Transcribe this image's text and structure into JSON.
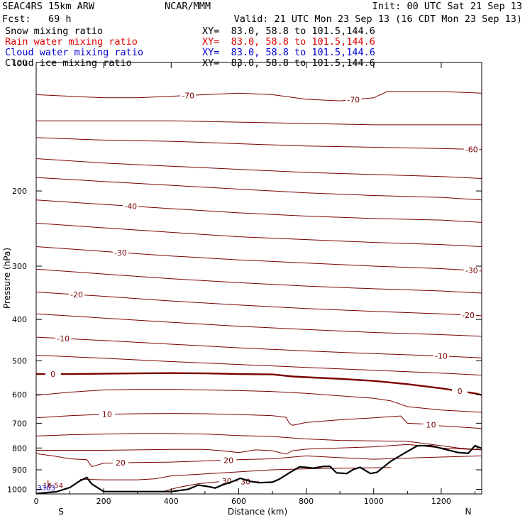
{
  "header": {
    "model": "SEAC4RS 15km ARW",
    "org": "NCAR/MMM",
    "init": "Init: 00 UTC Sat 21 Sep 13",
    "fcst": "Fcst:   69 h",
    "valid": "Valid: 21 UTC Mon 23 Sep 13 (16 CDT Mon 23 Sep 13)",
    "fields": [
      {
        "label": "Snow mixing ratio",
        "xy": "XY=  83.0, 58.8 to 101.5,144.6",
        "color": "#000000"
      },
      {
        "label": "Rain water mixing ratio",
        "xy": "XY=  83.0, 58.8 to 101.5,144.6",
        "color": "#e00000"
      },
      {
        "label": "Cloud water mixing ratio",
        "xy": "XY=  83.0, 58.8 to 101.5,144.6",
        "color": "#0000cc"
      },
      {
        "label": "Cloud ice mixing ratio",
        "xy": "XY=  83.0, 58.8 to 101.5,144.6",
        "color": "#000000"
      }
    ]
  },
  "colors": {
    "isotherm": "#7a0000",
    "terrain": "#000000"
  },
  "chart_data": {
    "type": "line",
    "xlabel": "Distance (km)",
    "ylabel": "Pressure (hPa)",
    "xlim": [
      0,
      1320
    ],
    "ylim": [
      1025,
      100
    ],
    "y_scale": "log",
    "x_ticks": [
      "0",
      "200",
      "400",
      "600",
      "800",
      "1000",
      "1200"
    ],
    "y_ticks": [
      "100",
      "200",
      "300",
      "400",
      "500",
      "600",
      "700",
      "800",
      "900",
      "1000"
    ],
    "x_end_labels": {
      "left": "S",
      "right": "N"
    },
    "isotherms": [
      {
        "level": "-70",
        "x": [
          0,
          100,
          200,
          300,
          400,
          500,
          600,
          700,
          800,
          900,
          1000,
          1040,
          1100,
          1200,
          1320
        ],
        "p": [
          119,
          120,
          121,
          121,
          120,
          119,
          118,
          119,
          122,
          123,
          121,
          117,
          117,
          117,
          118
        ],
        "labels": [
          {
            "text": "-70",
            "x": 450
          },
          {
            "text": "-70",
            "x": 940
          }
        ]
      },
      {
        "level": "-60",
        "x": [
          0,
          200,
          400,
          600,
          800,
          1000,
          1200,
          1320
        ],
        "p": [
          137,
          137,
          137,
          138,
          139,
          140,
          140,
          140
        ],
        "labels": []
      },
      {
        "level": "-60b",
        "x": [
          0,
          200,
          400,
          600,
          800,
          1000,
          1200,
          1320
        ],
        "p": [
          150,
          152,
          153,
          155,
          157,
          158,
          159,
          160
        ],
        "labels": [
          {
            "text": "-60",
            "x": 1290
          }
        ]
      },
      {
        "level": "-50",
        "x": [
          0,
          200,
          400,
          600,
          800,
          1000,
          1200,
          1320
        ],
        "p": [
          168,
          172,
          175,
          178,
          181,
          183,
          185,
          187
        ],
        "labels": []
      },
      {
        "level": "-50b",
        "x": [
          0,
          200,
          400,
          600,
          800,
          1000,
          1200,
          1320
        ],
        "p": [
          186,
          190,
          194,
          198,
          202,
          205,
          207,
          210
        ],
        "labels": []
      },
      {
        "level": "-40",
        "x": [
          0,
          200,
          400,
          600,
          800,
          1000,
          1200,
          1320
        ],
        "p": [
          210,
          215,
          220,
          225,
          229,
          232,
          234,
          237
        ],
        "labels": [
          {
            "text": "-40",
            "x": 280
          }
        ]
      },
      {
        "level": "-35",
        "x": [
          0,
          200,
          400,
          600,
          800,
          1000,
          1200,
          1320
        ],
        "p": [
          238,
          244,
          250,
          256,
          260,
          264,
          267,
          270
        ],
        "labels": []
      },
      {
        "level": "-30",
        "x": [
          0,
          200,
          400,
          600,
          800,
          1000,
          1200,
          1320
        ],
        "p": [
          270,
          277,
          284,
          290,
          295,
          300,
          304,
          308
        ],
        "labels": [
          {
            "text": "-30",
            "x": 250
          },
          {
            "text": "-30",
            "x": 1290
          }
        ]
      },
      {
        "level": "-25",
        "x": [
          0,
          200,
          400,
          600,
          800,
          1000,
          1200,
          1320
        ],
        "p": [
          305,
          313,
          321,
          328,
          334,
          339,
          343,
          347
        ],
        "labels": []
      },
      {
        "level": "-20",
        "x": [
          0,
          200,
          400,
          600,
          800,
          1000,
          1200,
          1320
        ],
        "p": [
          345,
          353,
          362,
          370,
          377,
          383,
          388,
          392
        ],
        "labels": [
          {
            "text": "-20",
            "x": 120
          },
          {
            "text": "-20",
            "x": 1280
          }
        ]
      },
      {
        "level": "-15",
        "x": [
          0,
          200,
          400,
          600,
          800,
          1000,
          1200,
          1320
        ],
        "p": [
          388,
          397,
          406,
          415,
          422,
          429,
          434,
          438
        ],
        "labels": []
      },
      {
        "level": "-10",
        "x": [
          0,
          200,
          400,
          600,
          800,
          1000,
          1200,
          1320
        ],
        "p": [
          440,
          448,
          457,
          466,
          474,
          481,
          487,
          492
        ],
        "labels": [
          {
            "text": "-10",
            "x": 80
          },
          {
            "text": "-10",
            "x": 1200
          }
        ]
      },
      {
        "level": "-5",
        "x": [
          0,
          200,
          400,
          600,
          800,
          1000,
          1200,
          1320
        ],
        "p": [
          485,
          493,
          502,
          510,
          518,
          526,
          534,
          540
        ],
        "labels": []
      },
      {
        "level": "0",
        "x": [
          0,
          100,
          200,
          300,
          400,
          500,
          600,
          700,
          760,
          800,
          900,
          1000,
          1100,
          1200,
          1300,
          1320
        ],
        "p": [
          537,
          537,
          536,
          535,
          534,
          535,
          537,
          538,
          544,
          546,
          551,
          557,
          567,
          580,
          596,
          601
        ],
        "labels": [
          {
            "text": "0",
            "x": 50
          },
          {
            "text": "0",
            "x": 1255
          }
        ],
        "bold": true
      },
      {
        "level": "5",
        "x": [
          0,
          100,
          200,
          300,
          400,
          500,
          600,
          700,
          800,
          900,
          1000,
          1050,
          1100,
          1200,
          1320
        ],
        "p": [
          602,
          592,
          585,
          583,
          583,
          585,
          587,
          590,
          596,
          604,
          612,
          620,
          640,
          652,
          660
        ],
        "labels": []
      },
      {
        "level": "10",
        "x": [
          0,
          100,
          200,
          300,
          400,
          500,
          600,
          700,
          740,
          750,
          760,
          800,
          900,
          1000,
          1080,
          1100,
          1150,
          1200,
          1320
        ],
        "p": [
          680,
          672,
          667,
          665,
          664,
          665,
          668,
          672,
          678,
          700,
          708,
          697,
          687,
          680,
          673,
          700,
          703,
          710,
          720
        ],
        "labels": [
          {
            "text": "10",
            "x": 210
          },
          {
            "text": "10",
            "x": 1170
          }
        ]
      },
      {
        "level": "15",
        "x": [
          0,
          100,
          200,
          300,
          400,
          500,
          600,
          700,
          800,
          900,
          1000,
          1100,
          1200,
          1250,
          1320
        ],
        "p": [
          750,
          745,
          742,
          740,
          740,
          742,
          748,
          752,
          762,
          768,
          770,
          772,
          790,
          800,
          808
        ],
        "labels": []
      },
      {
        "level": "15b",
        "x": [
          0,
          200,
          300,
          400,
          500,
          550,
          600,
          650,
          700,
          740,
          760,
          800,
          900,
          1000,
          1100,
          1200,
          1320
        ],
        "p": [
          810,
          810,
          808,
          806,
          806,
          812,
          820,
          808,
          812,
          827,
          812,
          805,
          800,
          795,
          785,
          800,
          808
        ],
        "labels": []
      },
      {
        "level": "20",
        "x": [
          0,
          50,
          100,
          150,
          165,
          200,
          300,
          400,
          500,
          600,
          700,
          800,
          900,
          1000,
          1100,
          1200,
          1320
        ],
        "p": [
          825,
          835,
          848,
          852,
          885,
          868,
          865,
          863,
          858,
          852,
          848,
          835,
          843,
          850,
          845,
          840,
          835
        ],
        "labels": [
          {
            "text": "20",
            "x": 250
          },
          {
            "text": "20",
            "x": 570
          }
        ]
      },
      {
        "level": "25",
        "x": [
          130,
          160,
          200,
          300,
          350,
          400,
          500,
          600,
          700,
          800,
          900,
          1000,
          1050
        ],
        "p": [
          948,
          948,
          950,
          950,
          945,
          930,
          920,
          910,
          900,
          895,
          892,
          890,
          889
        ],
        "labels": []
      },
      {
        "level": "30",
        "x": [
          380,
          420,
          480,
          540,
          580,
          620,
          660
        ],
        "p": [
          1010,
          990,
          970,
          960,
          955,
          958,
          960
        ],
        "labels": [
          {
            "text": "30",
            "x": 565
          },
          {
            "text": "30",
            "x": 620
          }
        ]
      }
    ],
    "terrain": {
      "x": [
        0,
        60,
        100,
        130,
        150,
        165,
        200,
        250,
        300,
        350,
        400,
        450,
        480,
        510,
        530,
        550,
        580,
        605,
        635,
        660,
        700,
        720,
        750,
        780,
        800,
        820,
        850,
        870,
        890,
        920,
        940,
        960,
        990,
        1010,
        1050,
        1100,
        1130,
        1170,
        1210,
        1250,
        1280,
        1300,
        1320
      ],
      "p": [
        1023,
        1013,
        990,
        955,
        938,
        972,
        1012,
        1012,
        1012,
        1012,
        1012,
        1000,
        977,
        985,
        993,
        978,
        960,
        942,
        958,
        965,
        962,
        947,
        915,
        886,
        888,
        892,
        884,
        883,
        915,
        918,
        898,
        888,
        918,
        912,
        860,
        815,
        790,
        790,
        805,
        820,
        823,
        790,
        802
      ]
    },
    "annotations": [
      {
        "text": "L",
        "x": 32,
        "p": 975,
        "color": "#7a0000"
      },
      {
        "text": "16.54",
        "x": 20,
        "p": 992,
        "color": "#7a0000"
      },
      {
        "text": "3303",
        "x": 3,
        "p": 1005,
        "color": "#0000cc"
      }
    ]
  }
}
